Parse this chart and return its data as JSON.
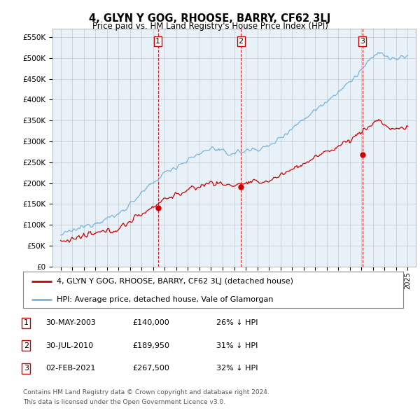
{
  "title": "4, GLYN Y GOG, RHOOSE, BARRY, CF62 3LJ",
  "subtitle": "Price paid vs. HM Land Registry's House Price Index (HPI)",
  "ylim": [
    0,
    570000
  ],
  "yticks": [
    0,
    50000,
    100000,
    150000,
    200000,
    250000,
    300000,
    350000,
    400000,
    450000,
    500000,
    550000
  ],
  "ytick_labels": [
    "£0",
    "£50K",
    "£100K",
    "£150K",
    "£200K",
    "£250K",
    "£300K",
    "£350K",
    "£400K",
    "£450K",
    "£500K",
    "£550K"
  ],
  "hpi_color": "#7ab4d8",
  "price_color": "#cc0000",
  "vline_color": "#cc0000",
  "chart_bg_color": "#e8f0f8",
  "grid_color": "#c0c8d0",
  "background_color": "#ffffff",
  "sales": [
    {
      "date_num": 2003.41,
      "price": 140000,
      "label": "1"
    },
    {
      "date_num": 2010.58,
      "price": 189950,
      "label": "2"
    },
    {
      "date_num": 2021.09,
      "price": 267500,
      "label": "3"
    }
  ],
  "legend_entries": [
    {
      "label": "4, GLYN Y GOG, RHOOSE, BARRY, CF62 3LJ (detached house)",
      "color": "#cc0000"
    },
    {
      "label": "HPI: Average price, detached house, Vale of Glamorgan",
      "color": "#7ab4d8"
    }
  ],
  "table_rows": [
    {
      "num": "1",
      "date": "30-MAY-2003",
      "price": "£140,000",
      "pct": "26% ↓ HPI"
    },
    {
      "num": "2",
      "date": "30-JUL-2010",
      "price": "£189,950",
      "pct": "31% ↓ HPI"
    },
    {
      "num": "3",
      "date": "02-FEB-2021",
      "price": "£267,500",
      "pct": "32% ↓ HPI"
    }
  ],
  "footer": [
    "Contains HM Land Registry data © Crown copyright and database right 2024.",
    "This data is licensed under the Open Government Licence v3.0."
  ],
  "title_fontsize": 10.5,
  "subtitle_fontsize": 8.5,
  "tick_fontsize": 7.5,
  "legend_fontsize": 8,
  "table_fontsize": 8,
  "footer_fontsize": 6.5
}
